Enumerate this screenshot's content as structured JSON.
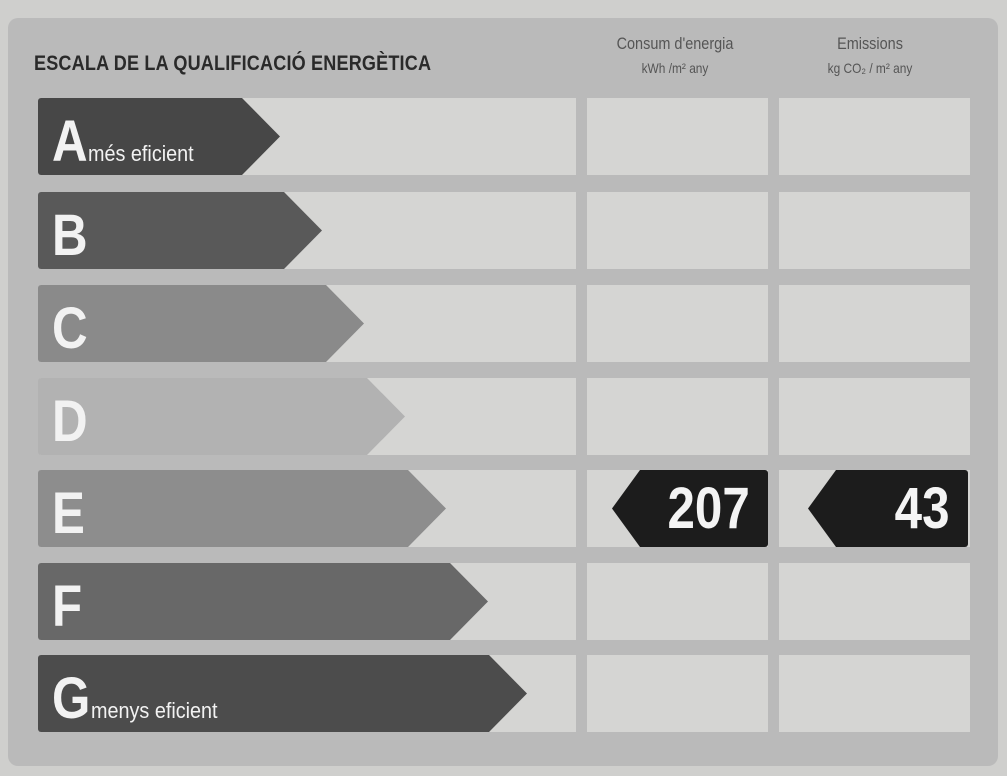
{
  "title": "ESCALA DE LA QUALIFICACIÓ ENERGÈTICA",
  "columns": [
    {
      "label": "Consum d'energia",
      "unit": "kWh /m² any"
    },
    {
      "label": "Emissions",
      "unit": "kg CO₂ / m² any"
    }
  ],
  "ratings": [
    {
      "letter": "A",
      "note": "més eficient",
      "color": "#474747"
    },
    {
      "letter": "B",
      "note": "",
      "color": "#595959"
    },
    {
      "letter": "C",
      "note": "",
      "color": "#8a8a8a"
    },
    {
      "letter": "D",
      "note": "",
      "color": "#b2b2b2"
    },
    {
      "letter": "E",
      "note": "",
      "color": "#8d8d8d"
    },
    {
      "letter": "F",
      "note": "",
      "color": "#686868"
    },
    {
      "letter": "G",
      "note": "menys eficient",
      "color": "#4c4c4c"
    }
  ],
  "result": {
    "rating": "E",
    "consum": "207",
    "emissions": "43"
  }
}
